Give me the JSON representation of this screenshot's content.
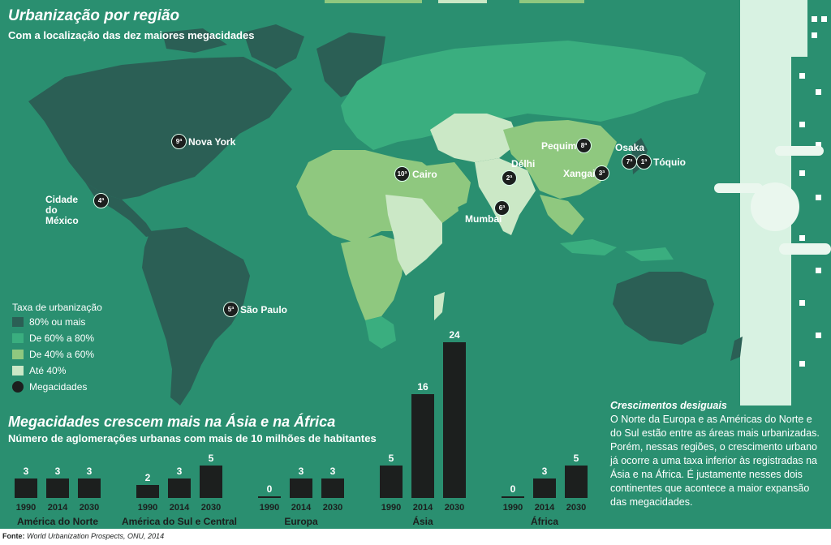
{
  "map": {
    "title": "Urbanização por região",
    "subtitle": "Com a localização das dez maiores megacidades",
    "colors": {
      "ocean": "#2a8f70",
      "c80": "#2b5f55",
      "c60": "#3aae7f",
      "c40": "#8fc87f",
      "c0": "#cbe8c6",
      "mega": "#1c1f1e"
    },
    "cities": [
      {
        "rank": "9ª",
        "name": "Nova York"
      },
      {
        "rank": "4ª",
        "name": "Cidade do México"
      },
      {
        "rank": "5ª",
        "name": "São Paulo"
      },
      {
        "rank": "10ª",
        "name": "Cairo"
      },
      {
        "rank": "2ª",
        "name": "Délhi"
      },
      {
        "rank": "6ª",
        "name": "Mumbai"
      },
      {
        "rank": "8ª",
        "name": "Pequim"
      },
      {
        "rank": "3ª",
        "name": "Xangai"
      },
      {
        "rank": "7ª",
        "name": "Osaka"
      },
      {
        "rank": "1ª",
        "name": "Tóquio"
      }
    ],
    "legend": {
      "title": "Taxa de urbanização",
      "items": [
        "80% ou mais",
        "De 60% a 80%",
        "De 40% a 60%",
        "Até 40%",
        "Megacidades"
      ]
    }
  },
  "chart_data": {
    "type": "bar",
    "title": "Megacidades crescem mais na Ásia e na África",
    "subtitle": "Número de aglomerações urbanas com mais de 10 milhões de habitantes",
    "x_years": [
      "1990",
      "2014",
      "2030"
    ],
    "groups": [
      {
        "name": "América do Norte",
        "values": [
          3,
          3,
          3
        ]
      },
      {
        "name": "América do Sul e Central",
        "values": [
          2,
          3,
          5
        ]
      },
      {
        "name": "Europa",
        "values": [
          0,
          3,
          3
        ]
      },
      {
        "name": "Ásia",
        "values": [
          5,
          16,
          24
        ]
      },
      {
        "name": "África",
        "values": [
          0,
          3,
          5
        ]
      }
    ]
  },
  "note": {
    "title": "Crescimentos desiguais",
    "text": "O Norte da Europa e as Américas do Norte e do Sul estão entre as áreas mais urbanizadas. Porém, nessas regiões, o crescimento urbano já ocorre a uma taxa inferior às registradas na Ásia e na África. É justamente nesses dois continentes que acontece a maior expansão das megacidades."
  },
  "source": {
    "label": "Fonte:",
    "text": "World Urbanization Prospects, ONU, 2014"
  }
}
